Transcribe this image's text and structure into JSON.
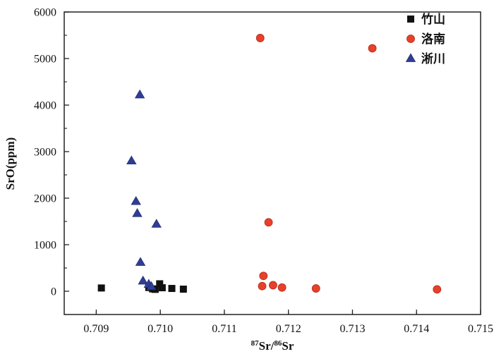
{
  "chart_data": {
    "type": "scatter",
    "title": "",
    "xlabel": {
      "sup1": "87",
      "base1": "Sr/",
      "sup2": "86",
      "base2": "Sr"
    },
    "ylabel": "SrO(ppm)",
    "xlim": [
      0.7085,
      0.715
    ],
    "ylim": [
      -500,
      6000
    ],
    "x_ticks": [
      "0.709",
      "0.710",
      "0.711",
      "0.712",
      "0.713",
      "0.714",
      "0.715"
    ],
    "y_ticks": [
      "0",
      "1000",
      "2000",
      "3000",
      "4000",
      "5000",
      "6000"
    ],
    "legend_position": "top-right",
    "series": [
      {
        "name": "竹山",
        "marker": "square",
        "color": "#111111",
        "points": [
          {
            "x": 0.70908,
            "y": 70
          },
          {
            "x": 0.70982,
            "y": 80
          },
          {
            "x": 0.70988,
            "y": 50
          },
          {
            "x": 0.70992,
            "y": 40
          },
          {
            "x": 0.70999,
            "y": 160
          },
          {
            "x": 0.71003,
            "y": 75
          },
          {
            "x": 0.71018,
            "y": 60
          },
          {
            "x": 0.71036,
            "y": 45
          }
        ]
      },
      {
        "name": "洛南",
        "marker": "circle",
        "color": "#e8402a",
        "points": [
          {
            "x": 0.71156,
            "y": 5440
          },
          {
            "x": 0.71331,
            "y": 5220
          },
          {
            "x": 0.71169,
            "y": 1480
          },
          {
            "x": 0.71161,
            "y": 330
          },
          {
            "x": 0.71176,
            "y": 130
          },
          {
            "x": 0.71159,
            "y": 110
          },
          {
            "x": 0.7119,
            "y": 80
          },
          {
            "x": 0.71243,
            "y": 60
          },
          {
            "x": 0.71432,
            "y": 40
          }
        ]
      },
      {
        "name": "淅川",
        "marker": "triangle",
        "color": "#2f3d94",
        "points": [
          {
            "x": 0.70968,
            "y": 4220
          },
          {
            "x": 0.70955,
            "y": 2800
          },
          {
            "x": 0.70962,
            "y": 1930
          },
          {
            "x": 0.70964,
            "y": 1670
          },
          {
            "x": 0.70994,
            "y": 1440
          },
          {
            "x": 0.70969,
            "y": 620
          },
          {
            "x": 0.70973,
            "y": 220
          },
          {
            "x": 0.70982,
            "y": 150
          },
          {
            "x": 0.70986,
            "y": 100
          }
        ]
      }
    ]
  }
}
